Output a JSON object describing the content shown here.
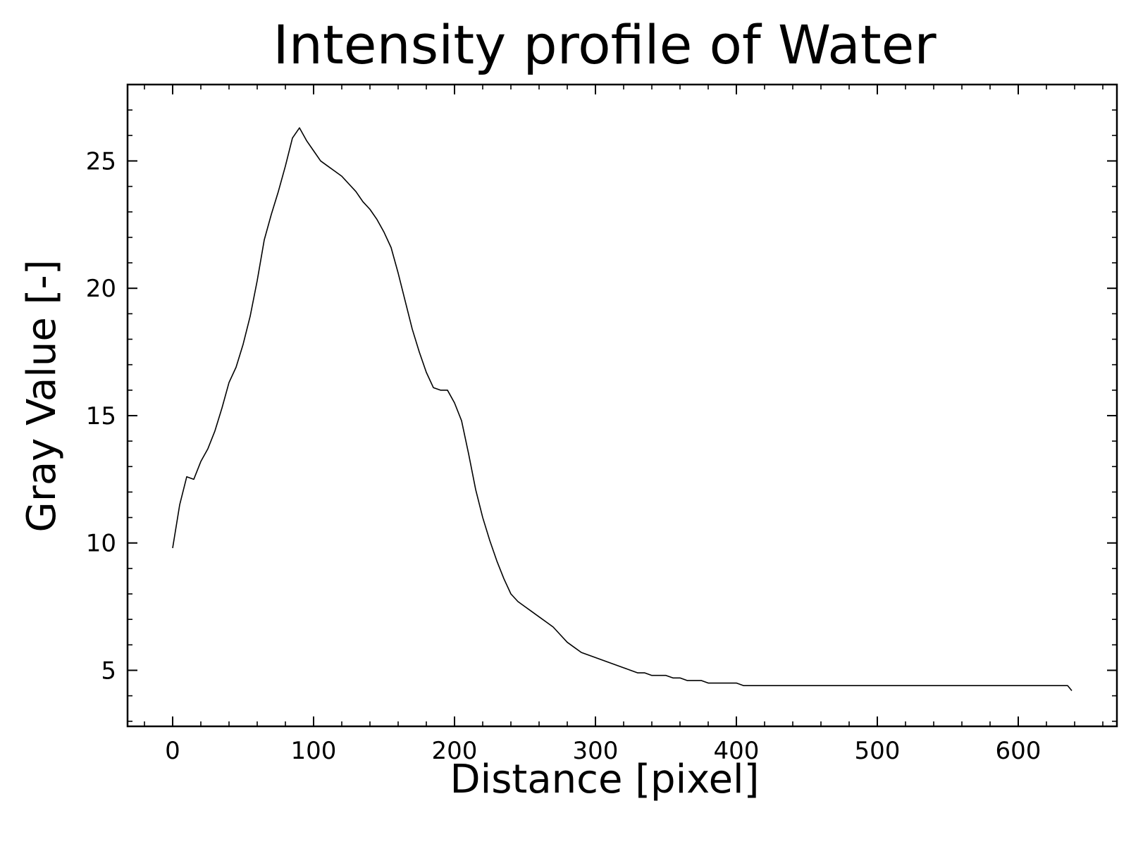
{
  "chart_data": {
    "type": "line",
    "title": "Intensity profile of Water",
    "xlabel": "Distance [pixel]",
    "ylabel": "Gray Value [-]",
    "xlim": [
      -32,
      670
    ],
    "ylim": [
      2.8,
      28.0
    ],
    "xticks": [
      0,
      100,
      200,
      300,
      400,
      500,
      600
    ],
    "xtick_labels": [
      "0",
      "100",
      "200",
      "300",
      "400",
      "500",
      "600"
    ],
    "yticks": [
      5,
      10,
      15,
      20,
      25
    ],
    "ytick_labels": [
      "5",
      "10",
      "15",
      "20",
      "25"
    ],
    "grid": false,
    "line_color": "#000000",
    "series": [
      {
        "x": [
          0,
          5,
          10,
          15,
          20,
          25,
          30,
          35,
          40,
          45,
          50,
          55,
          60,
          65,
          70,
          75,
          80,
          85,
          90,
          95,
          100,
          105,
          110,
          115,
          120,
          125,
          130,
          135,
          140,
          145,
          150,
          155,
          160,
          165,
          170,
          175,
          180,
          185,
          190,
          195,
          200,
          205,
          210,
          215,
          220,
          225,
          230,
          235,
          240,
          245,
          250,
          255,
          260,
          265,
          270,
          275,
          280,
          285,
          290,
          295,
          300,
          305,
          310,
          315,
          320,
          325,
          330,
          335,
          340,
          345,
          350,
          355,
          360,
          365,
          370,
          375,
          380,
          385,
          390,
          395,
          400,
          405,
          410,
          415,
          420,
          425,
          430,
          435,
          440,
          445,
          450,
          455,
          460,
          465,
          470,
          475,
          480,
          485,
          490,
          495,
          500,
          505,
          510,
          515,
          520,
          525,
          530,
          535,
          540,
          545,
          550,
          555,
          560,
          565,
          570,
          575,
          580,
          585,
          590,
          595,
          600,
          605,
          610,
          615,
          620,
          625,
          630,
          635,
          638
        ],
        "values": [
          9.8,
          11.5,
          12.6,
          12.5,
          13.2,
          13.7,
          14.4,
          15.3,
          16.3,
          16.9,
          17.8,
          18.9,
          20.3,
          21.9,
          22.9,
          23.8,
          24.8,
          25.9,
          26.3,
          25.8,
          25.4,
          25.0,
          24.8,
          24.6,
          24.4,
          24.1,
          23.8,
          23.4,
          23.1,
          22.7,
          22.2,
          21.6,
          20.6,
          19.5,
          18.4,
          17.5,
          16.7,
          16.1,
          16.0,
          16.0,
          15.5,
          14.8,
          13.5,
          12.1,
          11.0,
          10.1,
          9.3,
          8.6,
          8.0,
          7.7,
          7.5,
          7.3,
          7.1,
          6.9,
          6.7,
          6.4,
          6.1,
          5.9,
          5.7,
          5.6,
          5.5,
          5.4,
          5.3,
          5.2,
          5.1,
          5.0,
          4.9,
          4.9,
          4.8,
          4.8,
          4.8,
          4.7,
          4.7,
          4.6,
          4.6,
          4.6,
          4.5,
          4.5,
          4.5,
          4.5,
          4.5,
          4.4,
          4.4,
          4.4,
          4.4,
          4.4,
          4.4,
          4.4,
          4.4,
          4.4,
          4.4,
          4.4,
          4.4,
          4.4,
          4.4,
          4.4,
          4.4,
          4.4,
          4.4,
          4.4,
          4.4,
          4.4,
          4.4,
          4.4,
          4.4,
          4.4,
          4.4,
          4.4,
          4.4,
          4.4,
          4.4,
          4.4,
          4.4,
          4.4,
          4.4,
          4.4,
          4.4,
          4.4,
          4.4,
          4.4,
          4.4,
          4.4,
          4.4,
          4.4,
          4.4,
          4.4,
          4.4,
          4.4,
          4.2
        ]
      }
    ]
  }
}
